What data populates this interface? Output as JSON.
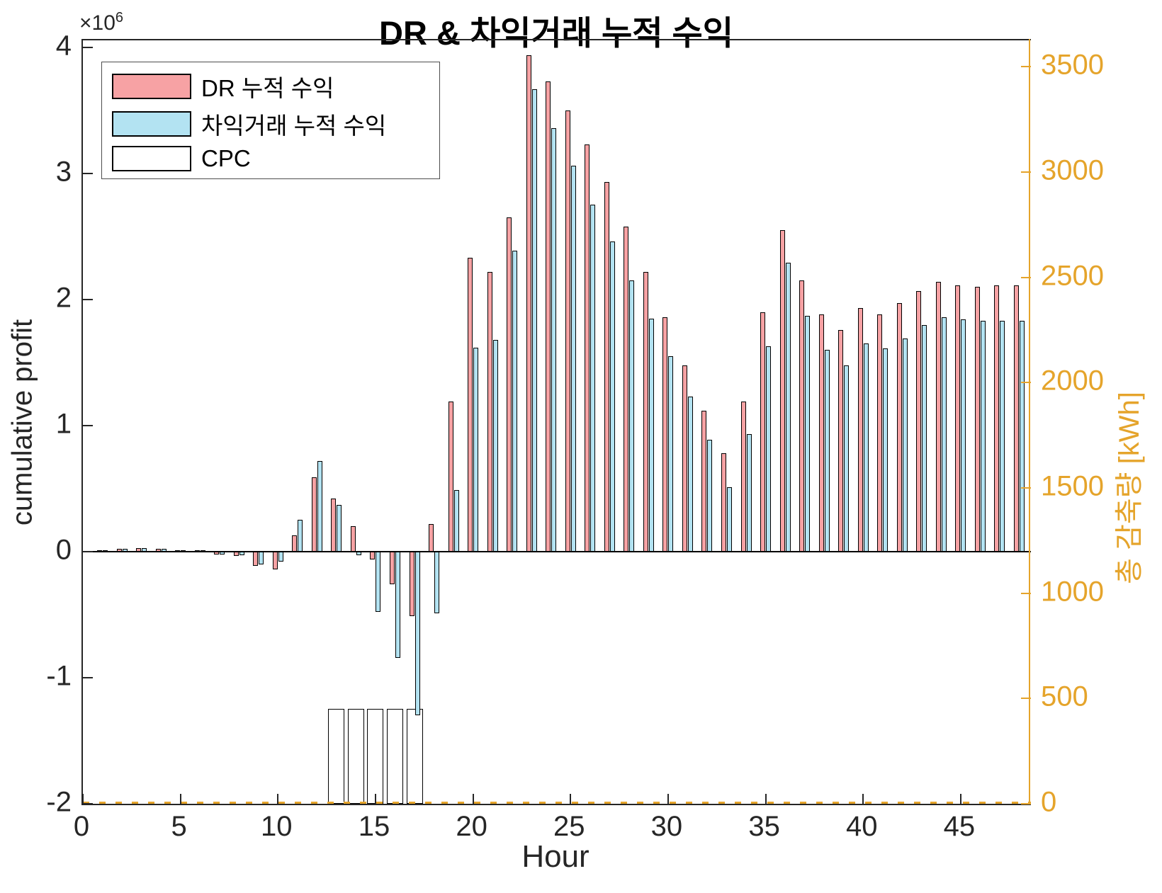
{
  "title": "DR & 차익거래 누적 수익",
  "offset": {
    "base": "×10",
    "exponent": "6"
  },
  "colors": {
    "dr_fill": "#F7A2A4",
    "arb_fill": "#B3E3F2",
    "cpc_fill": "#FFFFFF",
    "bar_edge": "#000000",
    "right_axis": "#E5A42B",
    "axis_dark": "#262626"
  },
  "legend": {
    "items": [
      {
        "label": "DR 누적 수익",
        "color": "#F7A2A4"
      },
      {
        "label": "차익거래 누적 수익",
        "color": "#B3E3F2"
      },
      {
        "label": "CPC",
        "color": "#FFFFFF"
      }
    ]
  },
  "chart_data": {
    "type": "bar",
    "title": "DR & 차익거래 누적 수익",
    "xlabel": "Hour",
    "ylabel_left": "cumulative profit",
    "ylabel_right": "총 감축량 [kWh]",
    "x_axis": {
      "min": 0,
      "max": 48.6,
      "ticks": [
        0,
        5,
        10,
        15,
        20,
        25,
        30,
        35,
        40,
        45
      ],
      "tick_labels": [
        "0",
        "5",
        "10",
        "15",
        "20",
        "25",
        "30",
        "35",
        "40",
        "45"
      ]
    },
    "y_left": {
      "min": -2000000,
      "max": 4056000,
      "offset_text": "×10^6",
      "ticks": [
        -2000000,
        -1000000,
        0,
        1000000,
        2000000,
        3000000,
        4000000
      ],
      "tick_labels": [
        "-2",
        "-1",
        "0",
        "1",
        "2",
        "3",
        "4"
      ]
    },
    "y_right": {
      "min": 0,
      "max": 3625,
      "color": "#E5A42B",
      "ticks": [
        0,
        500,
        1000,
        1500,
        2000,
        2500,
        3000,
        3500
      ],
      "tick_labels": [
        "0",
        "500",
        "1000",
        "1500",
        "2000",
        "2500",
        "3000",
        "3500"
      ]
    },
    "x": [
      1,
      2,
      3,
      4,
      5,
      6,
      7,
      8,
      9,
      10,
      11,
      12,
      13,
      14,
      15,
      16,
      17,
      18,
      19,
      20,
      21,
      22,
      23,
      24,
      25,
      26,
      27,
      28,
      29,
      30,
      31,
      32,
      33,
      34,
      35,
      36,
      37,
      38,
      39,
      40,
      41,
      42,
      43,
      44,
      45,
      46,
      47,
      48
    ],
    "series": [
      {
        "name": "DR 누적 수익",
        "axis": "left",
        "color": "#F7A2A4",
        "values": [
          10000,
          20000,
          30000,
          20000,
          10000,
          10000,
          -20000,
          -35000,
          -110000,
          -140000,
          130000,
          590000,
          420000,
          200000,
          -60000,
          -260000,
          -510000,
          220000,
          1190000,
          2330000,
          2220000,
          2650000,
          3940000,
          3730000,
          3500000,
          3230000,
          2930000,
          2580000,
          2220000,
          1860000,
          1480000,
          1120000,
          780000,
          1190000,
          1900000,
          2550000,
          2150000,
          1880000,
          1760000,
          1930000,
          1880000,
          1970000,
          2070000,
          2140000,
          2110000,
          2100000,
          2110000,
          2110000
        ]
      },
      {
        "name": "차익거래 누적 수익",
        "axis": "left",
        "color": "#B3E3F2",
        "values": [
          10000,
          20000,
          30000,
          20000,
          10000,
          10000,
          -20000,
          -30000,
          -100000,
          -80000,
          250000,
          720000,
          370000,
          -30000,
          -480000,
          -840000,
          -1300000,
          -490000,
          490000,
          1620000,
          1680000,
          2390000,
          3670000,
          3360000,
          3060000,
          2750000,
          2460000,
          2150000,
          1850000,
          1550000,
          1230000,
          890000,
          510000,
          930000,
          1630000,
          2290000,
          1870000,
          1600000,
          1480000,
          1650000,
          1610000,
          1690000,
          1800000,
          1860000,
          1840000,
          1830000,
          1830000,
          1830000
        ]
      },
      {
        "name": "CPC",
        "axis": "right",
        "color": "#FFFFFF",
        "values": [
          0,
          0,
          0,
          0,
          0,
          0,
          0,
          0,
          0,
          0,
          0,
          0,
          450,
          450,
          450,
          450,
          450,
          0,
          0,
          0,
          0,
          0,
          0,
          0,
          0,
          0,
          0,
          0,
          0,
          0,
          0,
          0,
          0,
          0,
          0,
          0,
          0,
          0,
          0,
          0,
          0,
          0,
          0,
          0,
          0,
          0,
          0,
          0
        ]
      }
    ],
    "legend_position": "top-left",
    "grid": false,
    "baseline_left_zero": true,
    "dashed_right_zero_line": true
  }
}
